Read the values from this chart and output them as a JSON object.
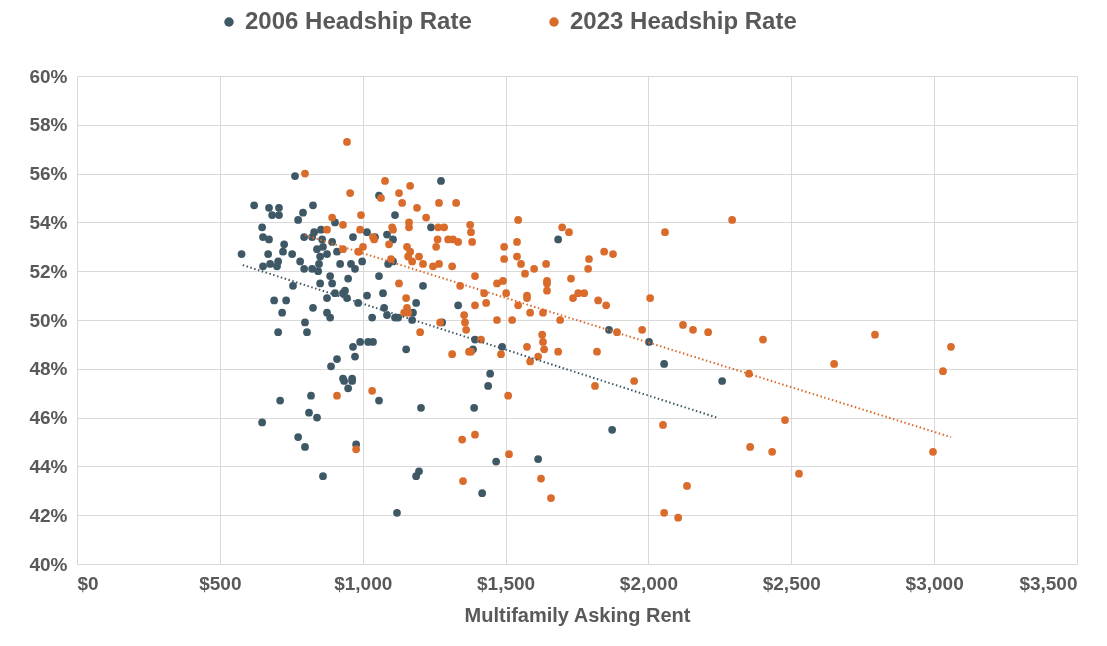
{
  "chart_data": {
    "type": "scatter",
    "xlabel": "Multifamily Asking Rent",
    "legend": "top",
    "grid": true,
    "marker": "circle",
    "xlim": [
      0,
      3500
    ],
    "ylim": [
      40,
      60
    ],
    "xticks": [
      {
        "value": 0,
        "label": "$0"
      },
      {
        "value": 500,
        "label": "$500"
      },
      {
        "value": 1000,
        "label": "$1,000"
      },
      {
        "value": 1500,
        "label": "$1,500"
      },
      {
        "value": 2000,
        "label": "$2,000"
      },
      {
        "value": 2500,
        "label": "$2,500"
      },
      {
        "value": 3000,
        "label": "$3,000"
      },
      {
        "value": 3500,
        "label": "$3,500"
      }
    ],
    "yticks": [
      {
        "value": 40,
        "label": "40%"
      },
      {
        "value": 42,
        "label": "42%"
      },
      {
        "value": 44,
        "label": "44%"
      },
      {
        "value": 46,
        "label": "46%"
      },
      {
        "value": 48,
        "label": "48%"
      },
      {
        "value": 50,
        "label": "50%"
      },
      {
        "value": 52,
        "label": "52%"
      },
      {
        "value": 54,
        "label": "54%"
      },
      {
        "value": 56,
        "label": "56%"
      },
      {
        "value": 58,
        "label": "58%"
      },
      {
        "value": 60,
        "label": "60%"
      }
    ],
    "series": [
      {
        "name": "2006 Headship Rate",
        "color": "#3f5866",
        "x": [
          576,
          620,
          672,
          707,
          683,
          707,
          763,
          791,
          774,
          826,
          648,
          651,
          672,
          669,
          725,
          721,
          753,
          781,
          651,
          676,
          704,
          700,
          795,
          823,
          830,
          854,
          903,
          858,
          893,
          840,
          861,
          875,
          851,
          910,
          847,
          795,
          823,
          844,
          756,
          886,
          893,
          921,
          949,
          959,
          973,
          998,
          966,
          1015,
          1043,
          1085,
          1106,
          1113,
          1057,
          1274,
          1239,
          1057,
          1089,
          1099,
          1106,
          1211,
          1015,
          1071,
          903,
          931,
          945,
          938,
          875,
          851,
          690,
          732,
          718,
          826,
          984,
          1075,
          1085,
          1113,
          1124,
          1176,
          1187,
          1173,
          1033,
          875,
          886,
          798,
          805,
          704,
          1334,
          1278,
          1152,
          966,
          991,
          1019,
          1036,
          973,
          910,
          889,
          931,
          963,
          935,
          963,
          949,
          711,
          819,
          812,
          840,
          648,
          774,
          798,
          977,
          861,
          1057,
          1204,
          1187,
          1197,
          1120,
          1684,
          1393,
          1386,
          1488,
          1862,
          2002,
          2055,
          1446,
          1439,
          1390,
          1873,
          1467,
          1614,
          1418,
          2258
        ],
        "values": [
          52.7,
          54.7,
          54.6,
          54.6,
          54.3,
          54.3,
          55.9,
          54.4,
          54.1,
          54.7,
          53.8,
          53.4,
          53.3,
          52.7,
          53.1,
          52.8,
          52.7,
          52.4,
          52.2,
          52.3,
          52.4,
          52.2,
          53.4,
          53.4,
          53.6,
          53.7,
          54.0,
          53.3,
          53.2,
          52.9,
          53.0,
          52.7,
          52.6,
          52.8,
          52.3,
          52.1,
          52.1,
          52.0,
          51.4,
          51.8,
          51.5,
          52.3,
          51.7,
          52.3,
          52.1,
          52.4,
          53.4,
          53.6,
          53.4,
          53.5,
          53.3,
          54.3,
          55.1,
          55.7,
          53.8,
          51.8,
          52.3,
          null,
          52.4,
          51.4,
          51.0,
          51.1,
          51.1,
          51.1,
          50.9,
          51.2,
          50.9,
          51.5,
          50.8,
          50.8,
          50.3,
          50.5,
          50.7,
          50.5,
          50.2,
          50.1,
          50.1,
          50.3,
          50.7,
          50.0,
          50.1,
          50.3,
          50.1,
          49.9,
          49.5,
          49.5,
          50.6,
          49.9,
          48.8,
          48.9,
          49.1,
          49.1,
          49.1,
          48.5,
          48.4,
          48.1,
          47.6,
          47.6,
          47.5,
          47.5,
          47.2,
          46.7,
          46.9,
          46.2,
          46.0,
          45.8,
          45.2,
          44.8,
          44.9,
          43.6,
          46.7,
          46.4,
          43.6,
          43.8,
          42.1,
          53.3,
          49.2,
          48.8,
          48.9,
          49.6,
          49.1,
          48.2,
          47.8,
          47.3,
          46.4,
          45.5,
          44.2,
          44.3,
          42.9,
          47.5
        ]
      },
      {
        "name": "2023 Headship Rate",
        "color": "#d96b2b",
        "x": [
          945,
          798,
          956,
          1078,
          1166,
          1127,
          1064,
          1138,
          1190,
          1267,
          1327,
          1222,
          893,
          931,
          994,
          875,
          991,
          1103,
          1106,
          1162,
          1162,
          1264,
          1285,
          1036,
          1040,
          931,
          987,
          1001,
          984,
          1092,
          1099,
          1155,
          1166,
          1159,
          1173,
          1197,
          1211,
          1246,
          1267,
          1313,
          1262,
          1299,
          1316,
          1334,
          1341,
          1127,
          1152,
          1155,
          1145,
          1159,
          1201,
          1271,
          1313,
          1355,
          1358,
          1362,
          910,
          1033,
          977,
          1348,
          1351,
          1372,
          1257,
          1376,
          1379,
          1383,
          1393,
          1470,
          1491,
          1425,
          1432,
          1393,
          1414,
          1379,
          1544,
          1495,
          1495,
          1540,
          1540,
          1554,
          1568,
          1600,
          1642,
          1645,
          1645,
          1645,
          1502,
          1575,
          1575,
          1544,
          1586,
          1631,
          1470,
          1523,
          1691,
          1628,
          1631,
          1635,
          1575,
          1614,
          1586,
          1484,
          1684,
          1698,
          1722,
          1729,
          1736,
          1754,
          1775,
          1792,
          1789,
          1824,
          1852,
          1845,
          1876,
          1890,
          1978,
          2006,
          2058,
          1820,
          1950,
          1813,
          1509,
          1393,
          1512,
          1624,
          1659,
          2051,
          2055,
          2293,
          2121,
          2156,
          2209,
          2401,
          2352,
          2650,
          2793,
          3059,
          3031,
          2478,
          2356,
          2433,
          2996,
          2527,
          2135,
          2104
        ],
        "values": [
          57.3,
          56.0,
          55.2,
          55.7,
          55.5,
          55.2,
          55.0,
          54.8,
          54.6,
          54.8,
          54.8,
          54.2,
          54.2,
          53.9,
          54.3,
          53.7,
          53.7,
          53.8,
          53.7,
          54.0,
          53.8,
          53.8,
          53.8,
          53.4,
          53.3,
          52.9,
          52.8,
          53.0,
          52.8,
          53.1,
          52.5,
          53.0,
          52.8,
          52.6,
          52.4,
          52.6,
          52.3,
          52.2,
          52.3,
          52.2,
          53.3,
          53.3,
          53.3,
          53.2,
          51.4,
          51.5,
          50.9,
          50.5,
          50.3,
          50.3,
          49.5,
          49.9,
          48.6,
          50.2,
          49.9,
          49.6,
          46.9,
          47.1,
          44.7,
          45.1,
          43.4,
          48.7,
          53.0,
          53.9,
          53.6,
          53.2,
          51.8,
          51.5,
          51.6,
          51.1,
          50.7,
          50.6,
          49.2,
          48.7,
          54.1,
          53.0,
          52.5,
          53.2,
          52.6,
          52.3,
          51.9,
          52.1,
          52.3,
          51.6,
          51.5,
          51.2,
          51.1,
          51.0,
          50.9,
          50.6,
          50.3,
          50.3,
          50.0,
          50.0,
          50.0,
          49.4,
          49.1,
          48.8,
          48.9,
          48.5,
          48.3,
          48.6,
          48.7,
          53.8,
          53.6,
          51.7,
          50.9,
          51.1,
          51.1,
          52.5,
          52.1,
          50.8,
          50.6,
          52.8,
          52.7,
          49.5,
          49.6,
          50.9,
          53.6,
          48.7,
          47.5,
          47.3,
          46.9,
          45.3,
          44.5,
          43.5,
          42.7,
          45.7,
          42.1,
          54.1,
          49.8,
          49.6,
          49.5,
          49.2,
          47.8,
          48.2,
          49.4,
          48.9,
          47.9,
          45.9,
          44.8,
          44.6,
          44.6,
          43.7,
          43.2,
          41.9
        ]
      },
      {
        "type": "line",
        "color": "#3f5866",
        "line_style": "dotted",
        "marker": "none",
        "x": [
          580,
          2245
        ],
        "values": [
          52.25,
          45.98
        ]
      },
      {
        "type": "line",
        "color": "#d96b2b",
        "line_style": "dotted",
        "marker": "none",
        "x": [
          798,
          3059
        ],
        "values": [
          53.48,
          45.2
        ]
      }
    ]
  }
}
